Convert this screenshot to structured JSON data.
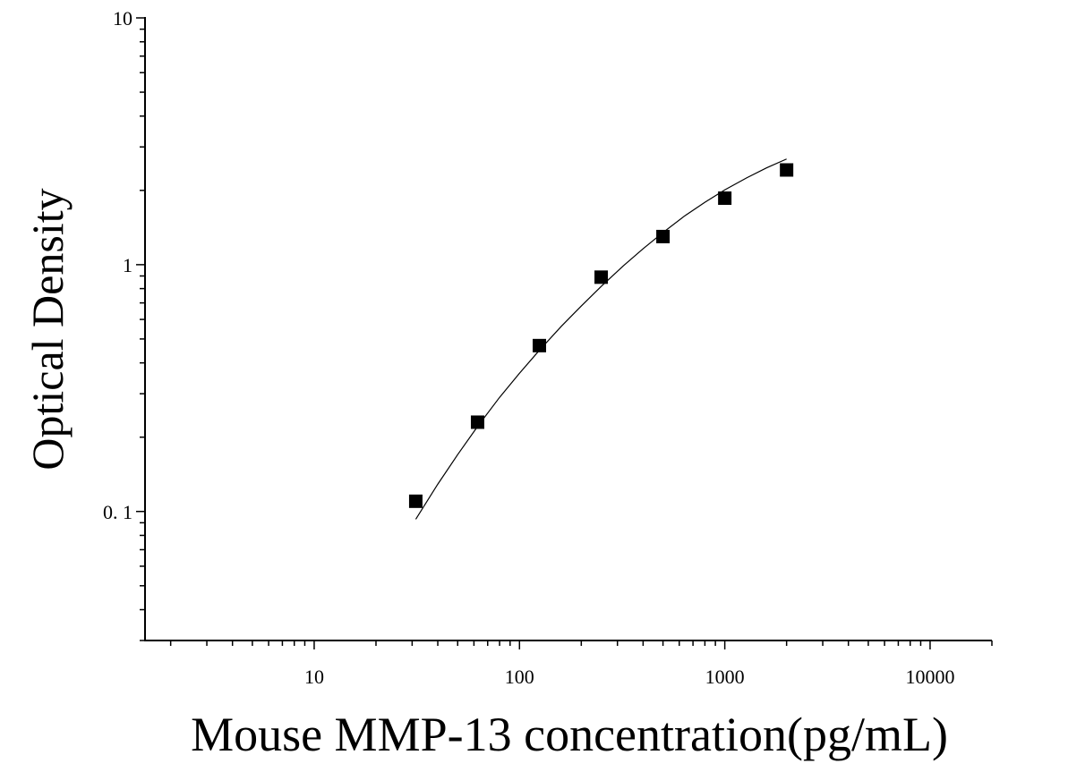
{
  "chart_data": {
    "type": "scatter",
    "title": "",
    "xlabel": "Mouse MMP-13 concentration(pg/mL)",
    "ylabel": "Optical Density",
    "xscale": "log",
    "yscale": "log",
    "xlim": [
      1.5,
      20000
    ],
    "ylim": [
      0.03,
      10
    ],
    "x_tick_labels": [
      {
        "value": 10,
        "label": "10"
      },
      {
        "value": 100,
        "label": "100"
      },
      {
        "value": 1000,
        "label": "1000"
      },
      {
        "value": 10000,
        "label": "10000"
      }
    ],
    "y_tick_labels": [
      {
        "value": 0.1,
        "label": "0. 1"
      },
      {
        "value": 1,
        "label": "1"
      },
      {
        "value": 10,
        "label": "10"
      }
    ],
    "grid": false,
    "legend": "none",
    "series": [
      {
        "marker": "square",
        "color": "#000000",
        "x": [
          31.25,
          62.5,
          125,
          250,
          500,
          1000,
          2000
        ],
        "y": [
          0.11,
          0.23,
          0.47,
          0.89,
          1.3,
          1.86,
          2.42
        ]
      }
    ],
    "fit_curve": {
      "color": "#000000",
      "x": [
        31.25,
        40,
        50,
        62.5,
        80,
        100,
        125,
        160,
        200,
        250,
        320,
        400,
        500,
        640,
        800,
        1000,
        1280,
        1600,
        2000
      ],
      "y": [
        0.093,
        0.129,
        0.17,
        0.221,
        0.29,
        0.363,
        0.45,
        0.563,
        0.68,
        0.816,
        0.988,
        1.16,
        1.35,
        1.58,
        1.79,
        2.01,
        2.25,
        2.47,
        2.68
      ]
    }
  }
}
